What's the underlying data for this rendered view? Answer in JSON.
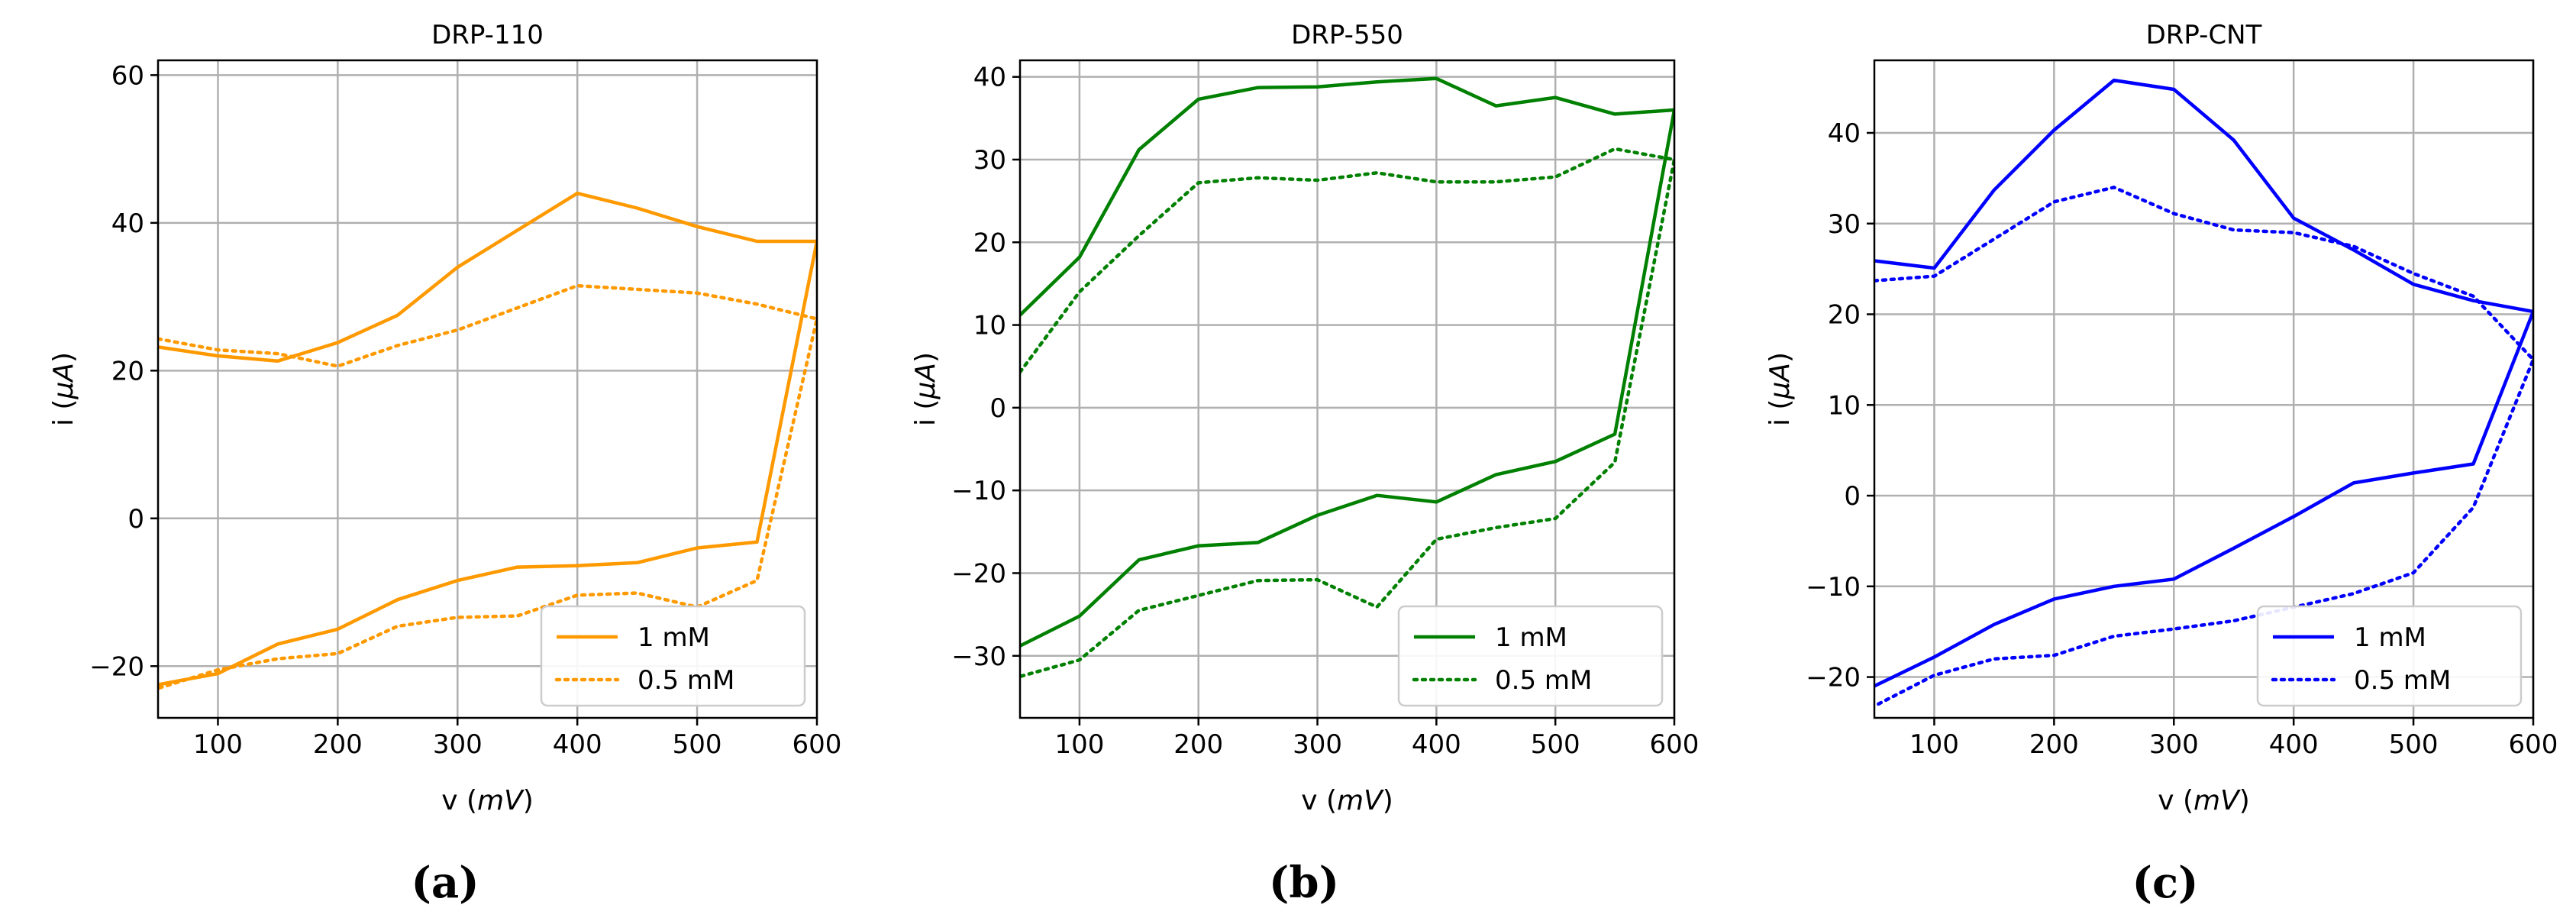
{
  "chart_data": [
    {
      "type": "line",
      "title": "DRP-110",
      "xlabel": "v (mV)",
      "xlabel_parts": [
        "v (",
        "mV",
        ")"
      ],
      "ylabel": "i (μA)",
      "ylabel_parts": [
        "i (",
        "μA",
        ")"
      ],
      "panel_label": "(a)",
      "color": "#ff9900",
      "xlim": [
        50,
        600
      ],
      "ylim": [
        -27,
        62
      ],
      "xticks": [
        100,
        200,
        300,
        400,
        500,
        600
      ],
      "yticks": [
        -20,
        0,
        20,
        40,
        60
      ],
      "grid": true,
      "legend_position": "lower-right",
      "series": [
        {
          "name": "1 mM",
          "style": "solid",
          "x": [
            50,
            100,
            150,
            200,
            250,
            300,
            350,
            400,
            450,
            500,
            550,
            600,
            550,
            500,
            450,
            400,
            350,
            300,
            250,
            200,
            150,
            100,
            50
          ],
          "y": [
            23.2,
            22.0,
            21.3,
            23.8,
            27.5,
            34.0,
            39.0,
            44.0,
            42.0,
            39.5,
            37.5,
            37.5,
            -3.2,
            -4.0,
            -6.0,
            -6.4,
            -6.6,
            -8.4,
            -11.0,
            -15.0,
            -17.0,
            -21.0,
            -22.5
          ]
        },
        {
          "name": "0.5 mM",
          "style": "dotted",
          "x": [
            50,
            100,
            150,
            200,
            250,
            300,
            350,
            400,
            450,
            500,
            550,
            600,
            550,
            500,
            450,
            400,
            350,
            300,
            250,
            200,
            150,
            100,
            50
          ],
          "y": [
            24.3,
            22.8,
            22.3,
            20.6,
            23.4,
            25.5,
            28.5,
            31.5,
            31.0,
            30.5,
            29.0,
            27.0,
            -8.4,
            -12.0,
            -10.1,
            -10.4,
            -13.2,
            -13.4,
            -14.6,
            -18.3,
            -19.0,
            -20.5,
            -23.0
          ]
        }
      ]
    },
    {
      "type": "line",
      "title": "DRP-550",
      "xlabel": "v (mV)",
      "xlabel_parts": [
        "v (",
        "mV",
        ")"
      ],
      "ylabel": "i (μA)",
      "ylabel_parts": [
        "i (",
        "μA",
        ")"
      ],
      "panel_label": "(b)",
      "color": "#008000",
      "xlim": [
        50,
        600
      ],
      "ylim": [
        -37.5,
        42
      ],
      "xticks": [
        100,
        200,
        300,
        400,
        500,
        600
      ],
      "yticks": [
        -30,
        -20,
        -10,
        0,
        10,
        20,
        30,
        40
      ],
      "grid": true,
      "legend_position": "lower-right",
      "series": [
        {
          "name": "1 mM",
          "style": "solid",
          "x": [
            50,
            100,
            150,
            200,
            250,
            300,
            350,
            400,
            450,
            500,
            550,
            600,
            550,
            500,
            450,
            400,
            350,
            300,
            250,
            200,
            150,
            100,
            50
          ],
          "y": [
            11.2,
            18.2,
            31.2,
            37.3,
            38.7,
            38.8,
            39.4,
            39.8,
            36.5,
            37.5,
            35.5,
            36.0,
            -3.2,
            -6.5,
            -8.1,
            -11.4,
            -10.6,
            -13.0,
            -16.3,
            -16.7,
            -18.4,
            -25.2,
            -28.8
          ]
        },
        {
          "name": "0.5 mM",
          "style": "dotted",
          "x": [
            50,
            100,
            150,
            200,
            250,
            300,
            350,
            400,
            450,
            500,
            550,
            600,
            550,
            500,
            450,
            400,
            350,
            300,
            250,
            200,
            150,
            100,
            50
          ],
          "y": [
            4.3,
            14.0,
            20.8,
            27.2,
            27.8,
            27.5,
            28.4,
            27.3,
            27.3,
            27.9,
            31.3,
            30.0,
            -6.6,
            -13.4,
            -14.5,
            -15.9,
            -24.1,
            -20.8,
            -20.9,
            -22.7,
            -24.5,
            -30.5,
            -32.5
          ]
        }
      ]
    },
    {
      "type": "line",
      "title": "DRP-CNT",
      "xlabel": "v (mV)",
      "xlabel_parts": [
        "v (",
        "mV",
        ")"
      ],
      "ylabel": "i (μA)",
      "ylabel_parts": [
        "i (",
        "μA",
        ")"
      ],
      "panel_label": "(c)",
      "color": "#0000ff",
      "xlim": [
        50,
        600
      ],
      "ylim": [
        -24.5,
        48
      ],
      "xticks": [
        100,
        200,
        300,
        400,
        500,
        600
      ],
      "yticks": [
        -20,
        -10,
        0,
        10,
        20,
        30,
        40
      ],
      "grid": true,
      "legend_position": "lower-right",
      "series": [
        {
          "name": "1 mM",
          "style": "solid",
          "x": [
            50,
            100,
            150,
            200,
            250,
            300,
            350,
            400,
            450,
            500,
            550,
            600,
            550,
            500,
            450,
            400,
            350,
            300,
            250,
            200,
            150,
            100,
            50
          ],
          "y": [
            25.9,
            25.1,
            33.7,
            40.3,
            45.8,
            44.8,
            39.2,
            30.6,
            27.1,
            23.3,
            21.5,
            20.3,
            3.5,
            2.5,
            1.4,
            -2.3,
            -5.8,
            -9.2,
            -10.0,
            -11.4,
            -14.2,
            -17.8,
            -21.0
          ]
        },
        {
          "name": "0.5 mM",
          "style": "dotted",
          "x": [
            50,
            100,
            150,
            200,
            250,
            300,
            350,
            400,
            450,
            500,
            550,
            600,
            550,
            500,
            450,
            400,
            350,
            300,
            250,
            200,
            150,
            100,
            50
          ],
          "y": [
            23.7,
            24.2,
            28.3,
            32.4,
            34.0,
            31.1,
            29.3,
            29.0,
            27.5,
            24.5,
            22.0,
            15.0,
            -1.3,
            -8.5,
            -10.8,
            -12.3,
            -13.8,
            -14.7,
            -15.5,
            -17.6,
            -18.0,
            -19.8,
            -23.2
          ]
        }
      ]
    }
  ]
}
